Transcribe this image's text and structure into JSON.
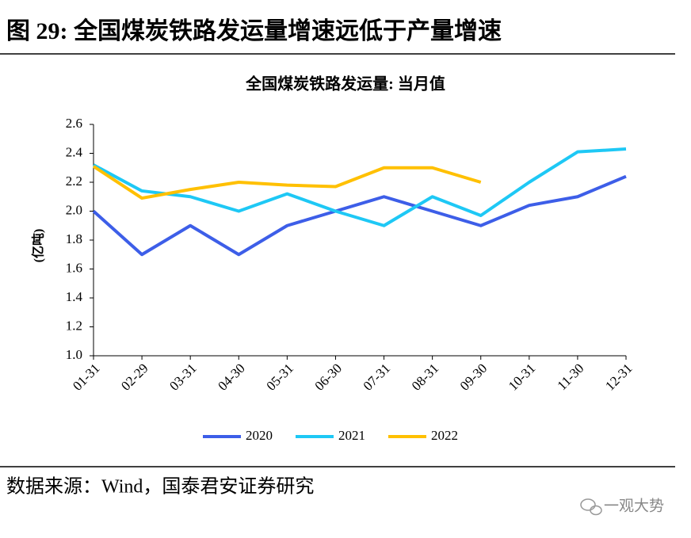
{
  "header": {
    "title": "图 29: 全国煤炭铁路发运量增速远低于产量增速"
  },
  "chart_data": {
    "type": "line",
    "title": "全国煤炭铁路发运量: 当月值",
    "y_label": "(亿吨)",
    "categories": [
      "01-31",
      "02-29",
      "03-31",
      "04-30",
      "05-31",
      "06-30",
      "07-31",
      "08-31",
      "09-30",
      "10-31",
      "11-30",
      "12-31"
    ],
    "series": [
      {
        "name": "2020",
        "color": "#3d5ee8",
        "values": [
          2.0,
          1.7,
          1.9,
          1.7,
          1.9,
          2.0,
          2.1,
          2.0,
          1.9,
          2.04,
          2.1,
          2.24
        ]
      },
      {
        "name": "2021",
        "color": "#1ec8f5",
        "values": [
          2.32,
          2.14,
          2.1,
          2.0,
          2.12,
          2.0,
          1.9,
          2.1,
          1.97,
          2.2,
          2.41,
          2.43
        ]
      },
      {
        "name": "2022",
        "color": "#ffc000",
        "values": [
          2.31,
          2.09,
          2.15,
          2.2,
          2.18,
          2.17,
          2.3,
          2.3,
          2.2,
          null,
          null,
          null
        ]
      }
    ],
    "ylim": [
      1.0,
      2.6
    ],
    "yticks": [
      {
        "value": 1.0,
        "label": "1.0"
      },
      1.2,
      1.4,
      1.6,
      1.8,
      {
        "value": 2.0,
        "label": "2.0"
      },
      2.2,
      2.4,
      2.6
    ],
    "legend": "bottom"
  },
  "footer": {
    "source": "数据来源：Wind，国泰君安证券研究",
    "watermark": "一观大势"
  }
}
